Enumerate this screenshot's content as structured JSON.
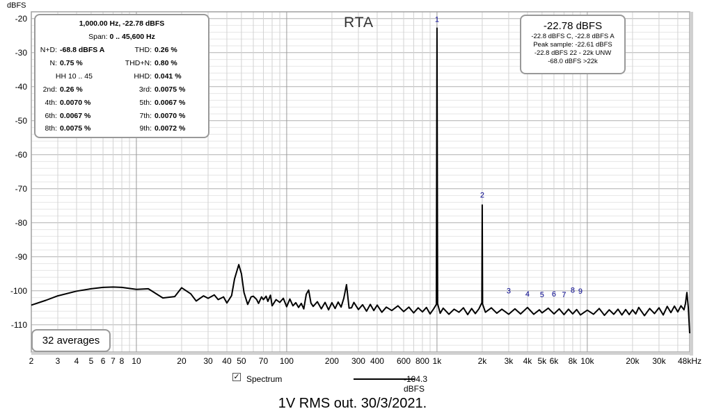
{
  "chart_data": {
    "type": "line",
    "title": "RTA",
    "ylabel": "dBFS",
    "xlabel": "",
    "x_scale": "log",
    "xlim": [
      2,
      48000
    ],
    "ylim": [
      -118,
      -18
    ],
    "grid": true,
    "y_ticks": [
      -20,
      -30,
      -40,
      -50,
      -60,
      -70,
      -80,
      -90,
      -100,
      -110
    ],
    "x_ticks": [
      {
        "f": 2,
        "label": "2"
      },
      {
        "f": 3,
        "label": "3"
      },
      {
        "f": 4,
        "label": "4"
      },
      {
        "f": 5,
        "label": "5"
      },
      {
        "f": 6,
        "label": "6"
      },
      {
        "f": 7,
        "label": "7"
      },
      {
        "f": 8,
        "label": "8"
      },
      {
        "f": 10,
        "label": "10"
      },
      {
        "f": 20,
        "label": "20"
      },
      {
        "f": 30,
        "label": "30"
      },
      {
        "f": 40,
        "label": "40"
      },
      {
        "f": 50,
        "label": "50"
      },
      {
        "f": 70,
        "label": "70"
      },
      {
        "f": 100,
        "label": "100"
      },
      {
        "f": 200,
        "label": "200"
      },
      {
        "f": 300,
        "label": "300"
      },
      {
        "f": 400,
        "label": "400"
      },
      {
        "f": 600,
        "label": "600"
      },
      {
        "f": 800,
        "label": "800"
      },
      {
        "f": 1000,
        "label": "1k"
      },
      {
        "f": 2000,
        "label": "2k"
      },
      {
        "f": 3000,
        "label": "3k"
      },
      {
        "f": 4000,
        "label": "4k"
      },
      {
        "f": 5000,
        "label": "5k"
      },
      {
        "f": 6000,
        "label": "6k"
      },
      {
        "f": 8000,
        "label": "8k"
      },
      {
        "f": 10000,
        "label": "10k"
      },
      {
        "f": 20000,
        "label": "20k"
      },
      {
        "f": 30000,
        "label": "30k"
      },
      {
        "f": 48000,
        "label": "48kHz"
      }
    ],
    "series": [
      {
        "color": "#000000",
        "x": [
          2,
          2.5,
          3,
          4,
          5,
          6,
          7,
          8,
          10,
          12,
          15,
          18,
          20,
          23,
          25,
          28,
          30,
          33,
          35,
          38,
          40,
          43,
          45,
          48,
          50,
          52,
          55,
          58,
          60,
          63,
          65,
          68,
          70,
          73,
          75,
          78,
          80,
          85,
          90,
          95,
          100,
          105,
          110,
          115,
          120,
          125,
          130,
          135,
          140,
          145,
          150,
          160,
          170,
          180,
          190,
          200,
          210,
          220,
          230,
          240,
          250,
          260,
          270,
          280,
          300,
          320,
          340,
          360,
          380,
          400,
          430,
          460,
          500,
          550,
          600,
          650,
          700,
          750,
          800,
          850,
          900,
          950,
          990,
          1000,
          1010,
          1050,
          1100,
          1200,
          1300,
          1400,
          1500,
          1600,
          1700,
          1800,
          1900,
          1990,
          2000,
          2010,
          2100,
          2300,
          2500,
          2700,
          3000,
          3300,
          3600,
          4000,
          4400,
          4800,
          5000,
          5500,
          6000,
          6500,
          7000,
          7500,
          8000,
          8500,
          9000,
          10000,
          11000,
          12000,
          13000,
          14000,
          15000,
          16000,
          17000,
          18000,
          19000,
          20000,
          21000,
          22000,
          24000,
          26000,
          28000,
          30000,
          32000,
          34000,
          36000,
          38000,
          40000,
          42000,
          44000,
          45000,
          46000,
          47000,
          48000
        ],
        "y": [
          -104.2,
          -102.8,
          -101.5,
          -100.1,
          -99.4,
          -99.0,
          -98.9,
          -99.0,
          -99.6,
          -99.4,
          -102.1,
          -101.7,
          -99.1,
          -100.9,
          -103.0,
          -101.5,
          -102.2,
          -101.2,
          -102.6,
          -101.8,
          -103.6,
          -101.4,
          -96.5,
          -92.3,
          -95.0,
          -100.5,
          -104.0,
          -101.8,
          -101.6,
          -102.5,
          -103.7,
          -101.8,
          -102.6,
          -101.6,
          -103.1,
          -101.3,
          -104.4,
          -102.6,
          -103.4,
          -102.2,
          -104.7,
          -102.4,
          -104.4,
          -103.5,
          -104.9,
          -103.7,
          -105.3,
          -101.0,
          -99.8,
          -103.6,
          -104.6,
          -103.2,
          -105.3,
          -103.4,
          -105.6,
          -103.5,
          -105.2,
          -103.3,
          -104.8,
          -102.2,
          -98.2,
          -105.1,
          -105.0,
          -103.4,
          -105.5,
          -104.1,
          -106.0,
          -104.0,
          -105.8,
          -104.2,
          -106.3,
          -104.8,
          -105.8,
          -104.4,
          -106.1,
          -104.8,
          -106.5,
          -105.0,
          -106.2,
          -104.9,
          -106.8,
          -105.3,
          -104.0,
          -22.8,
          -103.8,
          -106.6,
          -105.1,
          -106.9,
          -105.4,
          -106.3,
          -105.0,
          -107.0,
          -105.2,
          -106.7,
          -105.3,
          -103.5,
          -74.8,
          -103.9,
          -106.3,
          -105.0,
          -106.6,
          -105.4,
          -106.9,
          -105.3,
          -106.8,
          -104.9,
          -106.9,
          -105.6,
          -106.5,
          -105.1,
          -106.8,
          -105.3,
          -107.0,
          -105.4,
          -106.8,
          -105.5,
          -107.1,
          -105.7,
          -106.9,
          -105.2,
          -107.2,
          -105.6,
          -106.9,
          -105.4,
          -107.1,
          -105.5,
          -107.0,
          -105.6,
          -106.8,
          -104.9,
          -107.3,
          -105.2,
          -106.7,
          -105.0,
          -107.1,
          -104.6,
          -106.4,
          -104.5,
          -106.2,
          -104.4,
          -105.6,
          -103.8,
          -100.5,
          -104.9,
          -112.5
        ]
      }
    ],
    "harmonic_markers": [
      {
        "n": "1",
        "f": 1000,
        "db": -21.0
      },
      {
        "n": "2",
        "f": 2000,
        "db": -72.6
      },
      {
        "n": "3",
        "f": 3000,
        "db": -100.8
      },
      {
        "n": "4",
        "f": 4000,
        "db": -101.7
      },
      {
        "n": "5",
        "f": 5000,
        "db": -101.9
      },
      {
        "n": "6",
        "f": 6000,
        "db": -101.7
      },
      {
        "n": "7",
        "f": 7000,
        "db": -101.9
      },
      {
        "n": "8",
        "f": 8000,
        "db": -100.6
      },
      {
        "n": "9",
        "f": 9000,
        "db": -100.9
      }
    ]
  },
  "stats": {
    "freq_line": "1,000.00 Hz, -22.78 dBFS",
    "span_label": "Span:",
    "span_value": "0 .. 45,600 Hz",
    "rows": [
      {
        "l1": "N+D:",
        "v1": "-68.8 dBFS A",
        "l2": "THD:",
        "v2": "0.26 %"
      },
      {
        "l1": "N:",
        "v1": "0.75 %",
        "l2": "THD+N:",
        "v2": "0.80 %"
      },
      {
        "l1": "HH 10 .. 45",
        "v1": "",
        "l2": "HHD:",
        "v2": "0.041 %"
      },
      {
        "l1": "2nd:",
        "v1": "0.26 %",
        "l2": "3rd:",
        "v2": "0.0075 %"
      },
      {
        "l1": "4th:",
        "v1": "0.0070 %",
        "l2": "5th:",
        "v2": "0.0067 %"
      },
      {
        "l1": "6th:",
        "v1": "0.0067 %",
        "l2": "7th:",
        "v2": "0.0070 %"
      },
      {
        "l1": "8th:",
        "v1": "0.0075 %",
        "l2": "9th:",
        "v2": "0.0072 %"
      }
    ]
  },
  "level": {
    "main": "-22.78 dBFS",
    "lines": [
      "-22.8 dBFS C, -22.8 dBFS A",
      "Peak sample: -22.61 dBFS",
      "-22.8 dBFS 22 - 22k UNW",
      "-68.0 dBFS >22k"
    ]
  },
  "averages": "32 averages",
  "legend": {
    "checkbox_label": "Spectrum",
    "check_glyph": "✓",
    "value": "-104.3 dBFS"
  },
  "caption": "1V RMS out. 30/3/2021."
}
